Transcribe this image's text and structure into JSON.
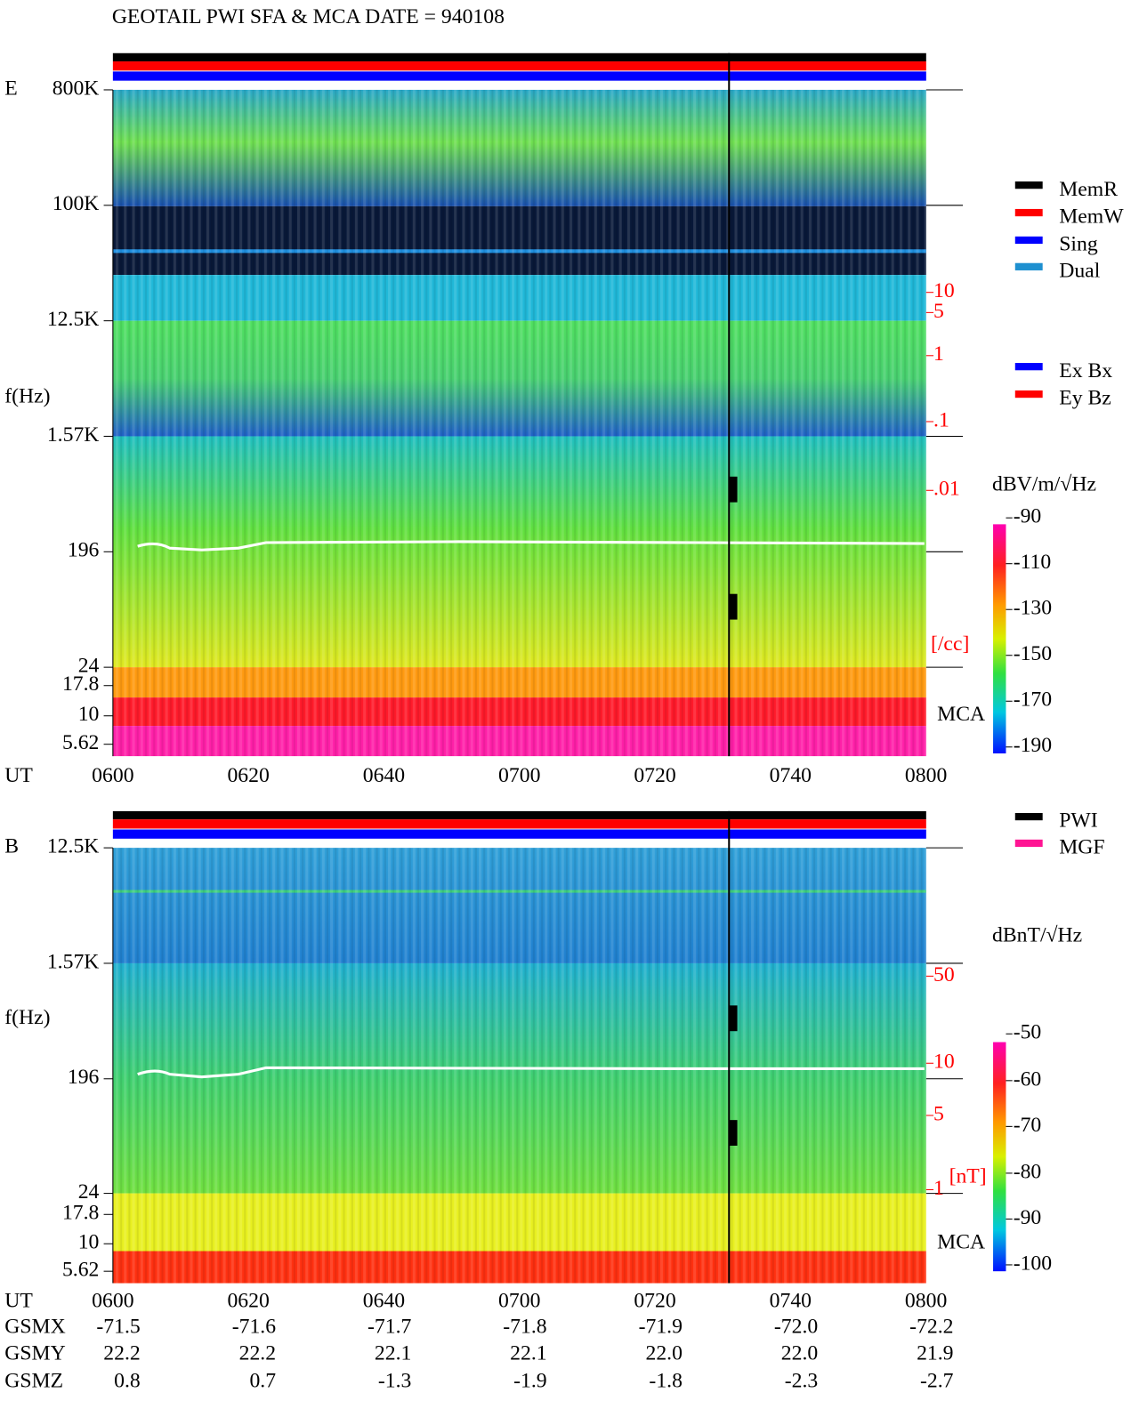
{
  "header": {
    "title": "GEOTAIL  PWI SFA & MCA   DATE = 940108"
  },
  "panels": [
    {
      "label": "E",
      "y_label": "f(Hz)",
      "y_ticks": [
        "800K",
        "100K",
        "12.5K",
        "1.57K",
        "196",
        "24",
        "17.8",
        "10",
        "5.62"
      ],
      "x_label": "UT",
      "x_ticks": [
        "0600",
        "0620",
        "0640",
        "0700",
        "0720",
        "0740",
        "0800"
      ],
      "mca_label": "MCA",
      "right_ticks": [
        "10",
        "5",
        "1",
        ".1",
        ".01"
      ],
      "right_unit": "[/cc]",
      "unit_label": "dBV/m/√Hz",
      "colorbar_ticks": [
        "-90",
        "-110",
        "-130",
        "-150",
        "-170",
        "-190"
      ],
      "legend": [
        {
          "name": "MemR",
          "color": "#000000"
        },
        {
          "name": "MemW",
          "color": "#ff0000"
        },
        {
          "name": "Sing",
          "color": "#0000ff"
        },
        {
          "name": "Dual",
          "color": "#1e90d0"
        },
        {
          "name": "Ex Bx",
          "color": "#0000ff"
        },
        {
          "name": "Ey Bz",
          "color": "#ff0000"
        }
      ]
    },
    {
      "label": "B",
      "y_label": "f(Hz)",
      "y_ticks": [
        "12.5K",
        "1.57K",
        "196",
        "24",
        "17.8",
        "10",
        "5.62"
      ],
      "x_label": "UT",
      "x_ticks": [
        "0600",
        "0620",
        "0640",
        "0700",
        "0720",
        "0740",
        "0800"
      ],
      "mca_label": "MCA",
      "right_ticks": [
        "50",
        "10",
        "5",
        "1"
      ],
      "right_unit": "[nT]",
      "unit_label": "dBnT/√Hz",
      "colorbar_ticks": [
        "-50",
        "-60",
        "-70",
        "-80",
        "-90",
        "-100"
      ],
      "legend": [
        {
          "name": "PWI",
          "color": "#000000"
        },
        {
          "name": "MGF",
          "color": "#ff1493"
        }
      ]
    }
  ],
  "orbit": {
    "rows": [
      {
        "label": "GSMX",
        "values": [
          "-71.5",
          "-71.6",
          "-71.7",
          "-71.8",
          "-71.9",
          "-72.0",
          "-72.2"
        ]
      },
      {
        "label": "GSMY",
        "values": [
          "22.2",
          "22.2",
          "22.1",
          "22.1",
          "22.0",
          "22.0",
          "21.9"
        ]
      },
      {
        "label": "GSMZ",
        "values": [
          "0.8",
          "0.7",
          "-1.3",
          "-1.9",
          "-1.8",
          "-2.3",
          "-2.7"
        ]
      }
    ]
  }
}
